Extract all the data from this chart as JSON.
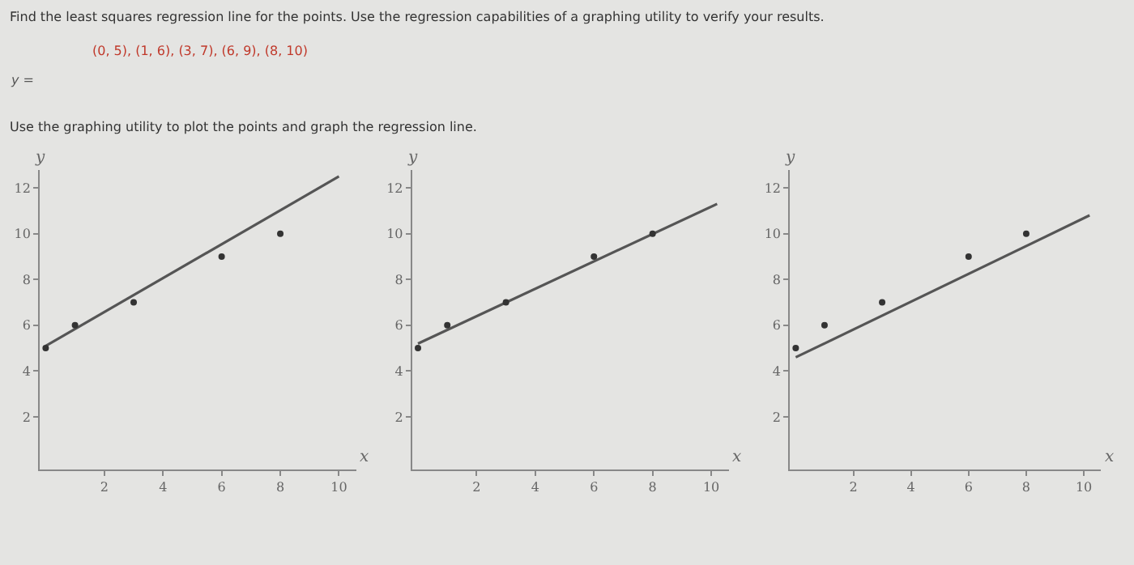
{
  "chart_data": [
    {
      "type": "scatter",
      "title": "Find the least squares regression line for the points. Use the regression capabilities of a graphing utility to verify your results.",
      "subtitle": "(0, 5), (1, 6), (3, 7), (6, 9), (8, 10)",
      "annotations": [
        "y =",
        "Use the graphing utility to plot the points and graph the regression line."
      ],
      "xlabel": "x",
      "ylabel": "y",
      "x": [
        0,
        1,
        3,
        6,
        8
      ],
      "xlim": [
        -0.2,
        10.6
      ],
      "ylim": [
        -0.3,
        12.8
      ],
      "xticks": [
        2,
        4,
        6,
        8,
        10
      ],
      "yticks": [
        2,
        4,
        6,
        8,
        10,
        12
      ],
      "grid": false,
      "series": [
        {
          "color": "#333333",
          "marker": "circle",
          "values": [
            5,
            6,
            7,
            9,
            10
          ]
        },
        {
          "type": "line",
          "color": "#555555",
          "marker": "none",
          "x": [
            0,
            10
          ],
          "values": [
            5.1,
            12.5
          ]
        }
      ]
    },
    {
      "type": "scatter",
      "xlabel": "x",
      "ylabel": "y",
      "x": [
        0,
        1,
        3,
        6,
        8
      ],
      "xlim": [
        -0.2,
        10.6
      ],
      "ylim": [
        -0.3,
        12.8
      ],
      "xticks": [
        2,
        4,
        6,
        8,
        10
      ],
      "yticks": [
        2,
        4,
        6,
        8,
        10,
        12
      ],
      "grid": false,
      "series": [
        {
          "color": "#333333",
          "marker": "circle",
          "values": [
            5,
            6,
            7,
            9,
            10
          ]
        },
        {
          "type": "line",
          "color": "#555555",
          "marker": "none",
          "x": [
            0,
            10.2
          ],
          "values": [
            5.2,
            11.3
          ]
        }
      ]
    },
    {
      "type": "scatter",
      "xlabel": "x",
      "ylabel": "y",
      "x": [
        0,
        1,
        3,
        6,
        8
      ],
      "xlim": [
        -0.2,
        10.6
      ],
      "ylim": [
        -0.3,
        12.8
      ],
      "xticks": [
        2,
        4,
        6,
        8,
        10
      ],
      "yticks": [
        2,
        4,
        6,
        8,
        10,
        12
      ],
      "grid": false,
      "series": [
        {
          "color": "#333333",
          "marker": "circle",
          "values": [
            5,
            6,
            7,
            9,
            10
          ]
        },
        {
          "type": "line",
          "color": "#555555",
          "marker": "none",
          "x": [
            0,
            10.2
          ],
          "values": [
            4.6,
            10.8
          ]
        }
      ]
    }
  ]
}
